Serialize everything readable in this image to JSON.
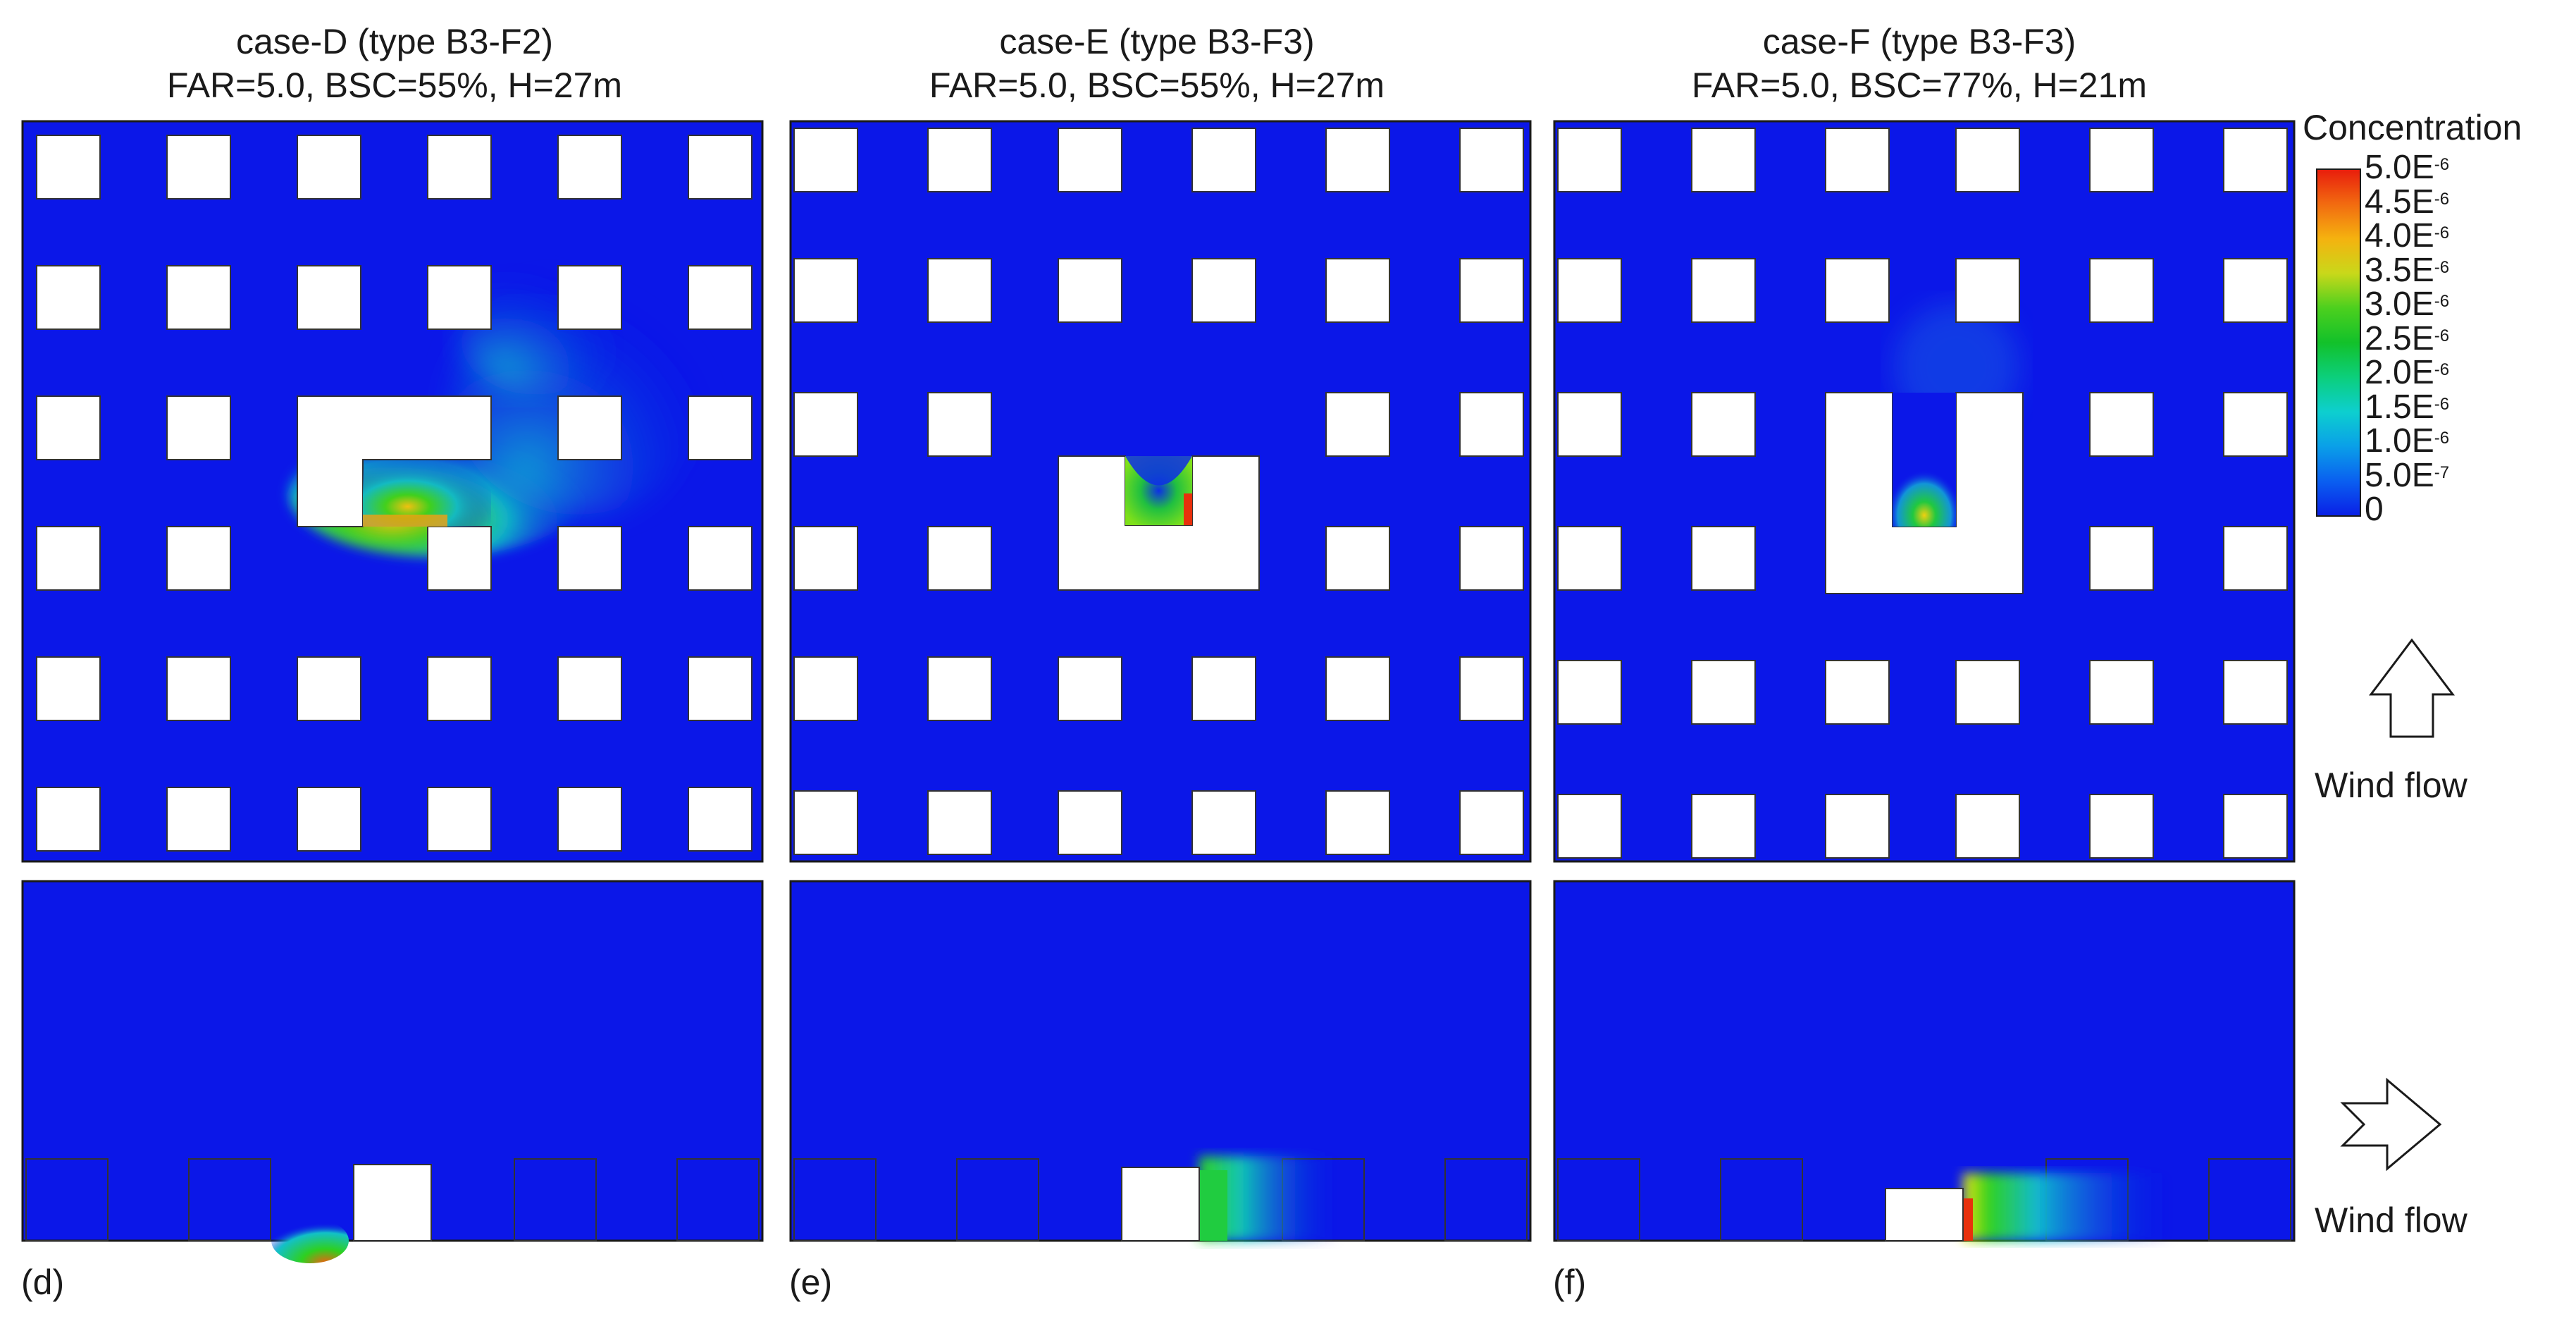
{
  "panels": [
    {
      "title": "case-D (type B3-F2)",
      "subtitle": "FAR=5.0, BSC=55%, H=27m",
      "label": "(d)"
    },
    {
      "title": "case-E (type B3-F3)",
      "subtitle": "FAR=5.0, BSC=55%, H=27m",
      "label": "(e)"
    },
    {
      "title": "case-F (type B3-F3)",
      "subtitle": "FAR=5.0, BSC=77%, H=21m",
      "label": "(f)"
    }
  ],
  "legend": {
    "title": "Concentration",
    "ticks": [
      {
        "mant": "5.0E",
        "exp": "-6"
      },
      {
        "mant": "4.5E",
        "exp": "-6"
      },
      {
        "mant": "4.0E",
        "exp": "-6"
      },
      {
        "mant": "3.5E",
        "exp": "-6"
      },
      {
        "mant": "3.0E",
        "exp": "-6"
      },
      {
        "mant": "2.5E",
        "exp": "-6"
      },
      {
        "mant": "2.0E",
        "exp": "-6"
      },
      {
        "mant": "1.5E",
        "exp": "-6"
      },
      {
        "mant": "1.0E",
        "exp": "-6"
      },
      {
        "mant": "5.0E",
        "exp": "-7"
      },
      {
        "mant": "0",
        "exp": ""
      }
    ],
    "colors": [
      "#e81c0c",
      "#f26a10",
      "#f5b20f",
      "#c9d81a",
      "#4cd01e",
      "#12c12a",
      "#0ccf7c",
      "#0dcfcf",
      "#0a9fe8",
      "#0a5ff0",
      "#0a1fe6"
    ]
  },
  "wind": {
    "top_label": "Wind flow",
    "side_label": "Wind flow"
  },
  "field_color": "#0b17e8"
}
